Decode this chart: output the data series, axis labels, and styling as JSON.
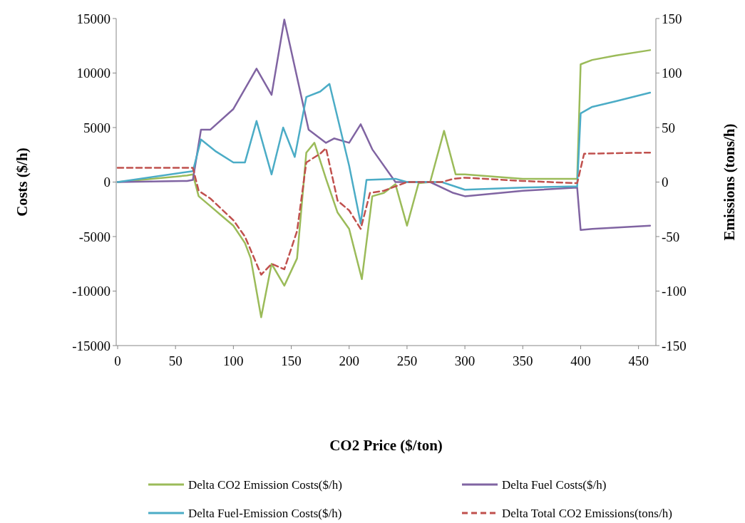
{
  "chart_data": {
    "type": "line",
    "xlabel": "CO2 Price ($/ton)",
    "ylabel": "Costs ($/h)",
    "y2label": "Emissions (tons/h)",
    "xlim": [
      0,
      465
    ],
    "xticks": [
      0,
      50,
      100,
      150,
      200,
      250,
      300,
      350,
      400,
      450
    ],
    "ylim": [
      -15000,
      15000
    ],
    "yticks": [
      -15000,
      -10000,
      -5000,
      0,
      5000,
      10000,
      15000
    ],
    "y2lim": [
      -150,
      150
    ],
    "y2ticks": [
      -150,
      -100,
      -50,
      0,
      50,
      100,
      150
    ],
    "grid": false,
    "legend": "bottom",
    "marker": "none",
    "series": [
      {
        "name": "Delta CO2 Emission Costs($/h)",
        "color": "#9bbb59",
        "x": [
          0,
          60,
          65,
          70,
          80,
          90,
          100,
          110,
          115,
          124,
          133,
          144,
          155,
          163,
          170,
          180,
          190,
          200,
          211,
          220,
          230,
          240,
          250,
          260,
          270,
          282,
          292,
          300,
          350,
          397,
          400,
          410,
          430,
          460
        ],
        "values": [
          0,
          600,
          700,
          -1300,
          -2200,
          -3100,
          -4000,
          -5600,
          -7000,
          -12400,
          -7500,
          -9500,
          -7000,
          2700,
          3600,
          300,
          -2800,
          -4300,
          -8900,
          -1300,
          -1000,
          -200,
          -4000,
          -100,
          0,
          4700,
          700,
          700,
          300,
          300,
          10800,
          11200,
          11600,
          12100
        ]
      },
      {
        "name": "Delta Fuel Costs($/h)",
        "color": "#8064a2",
        "x": [
          0,
          60,
          65,
          72,
          80,
          100,
          120,
          133,
          144,
          165,
          180,
          187,
          200,
          210,
          220,
          240,
          270,
          290,
          300,
          350,
          397,
          400,
          410,
          460
        ],
        "values": [
          0,
          100,
          200,
          4800,
          4800,
          6700,
          10400,
          8000,
          14900,
          4800,
          3600,
          4000,
          3600,
          5300,
          3000,
          0,
          0,
          -1000,
          -1300,
          -800,
          -500,
          -4400,
          -4300,
          -4000
        ]
      },
      {
        "name": "Delta Fuel-Emission Costs($/h)",
        "color": "#4bacc6",
        "x": [
          0,
          65,
          72,
          85,
          100,
          110,
          120,
          133,
          143,
          153,
          163,
          175,
          183,
          200,
          210,
          215,
          240,
          250,
          280,
          300,
          350,
          397,
          400,
          410,
          430,
          460
        ],
        "values": [
          0,
          1000,
          3900,
          2800,
          1800,
          1800,
          5600,
          700,
          5000,
          2300,
          7800,
          8300,
          9000,
          1500,
          -3800,
          200,
          300,
          0,
          0,
          -700,
          -500,
          -400,
          6300,
          6900,
          7400,
          8200
        ]
      },
      {
        "name": "Delta Total CO2 Emissions(tons/h)",
        "color": "#c0504d",
        "axis": "y2",
        "line_style": "dashed",
        "x": [
          0,
          65,
          70,
          80,
          90,
          100,
          110,
          124,
          133,
          144,
          155,
          163,
          175,
          180,
          190,
          200,
          210,
          218,
          230,
          250,
          280,
          290,
          300,
          350,
          397,
          403,
          460
        ],
        "values": [
          13,
          13,
          -8,
          -15,
          -25,
          -35,
          -50,
          -85,
          -75,
          -80,
          -45,
          18,
          26,
          31,
          -17,
          -26,
          -43,
          -10,
          -8,
          0,
          0,
          3,
          4,
          1,
          -1,
          26,
          27
        ]
      }
    ]
  }
}
